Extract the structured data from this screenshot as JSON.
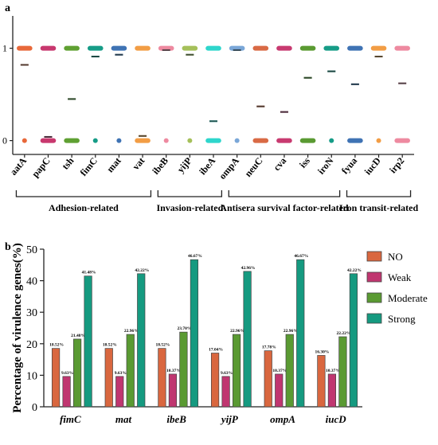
{
  "panels": {
    "a_label": "a",
    "b_label": "b"
  },
  "colors": {
    "no": "#d9673f",
    "weak": "#c03670",
    "moderate": "#5a9a32",
    "strong": "#159a80",
    "median": "#1f2a2a"
  },
  "chart_data": [
    {
      "type": "scatter",
      "panel": "a",
      "yticks": [
        "0",
        "1"
      ],
      "ylim": [
        -0.15,
        1.35
      ],
      "genes": [
        {
          "name": "aatA",
          "color": "#e8683a",
          "has_one": true,
          "has_zero": true,
          "mean": 0.82
        },
        {
          "name": "papC",
          "color": "#c8386e",
          "has_one": true,
          "has_zero": true,
          "mean": 0.04
        },
        {
          "name": "tsh",
          "color": "#5fa032",
          "has_one": true,
          "has_zero": true,
          "mean": 0.45
        },
        {
          "name": "fimC",
          "color": "#169c87",
          "has_one": true,
          "has_zero": true,
          "mean": 0.91
        },
        {
          "name": "mat",
          "color": "#3f73b4",
          "has_one": true,
          "has_zero": true,
          "mean": 0.93
        },
        {
          "name": "vat",
          "color": "#f29d45",
          "has_one": true,
          "has_zero": true,
          "mean": 0.05
        },
        {
          "name": "ibeB",
          "color": "#ee8aa0",
          "has_one": true,
          "has_zero": true,
          "mean": 0.98
        },
        {
          "name": "yijP",
          "color": "#a5c05a",
          "has_one": true,
          "has_zero": true,
          "mean": 0.93
        },
        {
          "name": "ibeA",
          "color": "#2ed6cc",
          "has_one": true,
          "has_zero": true,
          "mean": 0.21
        },
        {
          "name": "ompA",
          "color": "#7aa7d8",
          "has_one": true,
          "has_zero": true,
          "mean": 0.98
        },
        {
          "name": "neuC",
          "color": "#d96a45",
          "has_one": true,
          "has_zero": true,
          "mean": 0.37
        },
        {
          "name": "cva",
          "color": "#c83a70",
          "has_one": true,
          "has_zero": true,
          "mean": 0.31
        },
        {
          "name": "iss",
          "color": "#5a9a32",
          "has_one": true,
          "has_zero": true,
          "mean": 0.68
        },
        {
          "name": "iroN",
          "color": "#169c87",
          "has_one": true,
          "has_zero": true,
          "mean": 0.75
        },
        {
          "name": "fyua",
          "color": "#3f73b4",
          "has_one": true,
          "has_zero": true,
          "mean": 0.61
        },
        {
          "name": "iucD",
          "color": "#f29d45",
          "has_one": true,
          "has_zero": true,
          "mean": 0.91
        },
        {
          "name": "irp2",
          "color": "#ee8aa0",
          "has_one": true,
          "has_zero": true,
          "mean": 0.62
        }
      ],
      "groups": [
        {
          "label": "Adhesion-related",
          "first": 0,
          "last": 5
        },
        {
          "label": "Invasion-related",
          "first": 6,
          "last": 8
        },
        {
          "label": "Antisera survival factor-related",
          "first": 9,
          "last": 13
        },
        {
          "label": "Iron transit-related",
          "first": 14,
          "last": 16
        }
      ]
    },
    {
      "type": "bar",
      "panel": "b",
      "ylabel": "Percentage of virulence genes(%)",
      "ylim": [
        0,
        50
      ],
      "yticks": [
        0,
        10,
        20,
        30,
        40,
        50
      ],
      "categories": [
        "fimC",
        "mat",
        "ibeB",
        "yijP",
        "ompA",
        "iucD"
      ],
      "series": [
        {
          "name": "NO",
          "color": "#d9673f",
          "values": [
            18.52,
            18.52,
            18.52,
            17.04,
            17.78,
            16.3
          ],
          "labels": [
            "18.52%",
            "18.52%",
            "18.52%",
            "17.04%",
            "17.78%",
            "16.30%"
          ]
        },
        {
          "name": "Weak",
          "color": "#c03670",
          "values": [
            9.63,
            9.63,
            10.37,
            9.63,
            10.37,
            10.37
          ],
          "labels": [
            "9.63%",
            "9.63%",
            "10.37%",
            "9.63%",
            "10.37%",
            "10.37%"
          ]
        },
        {
          "name": "Moderate",
          "color": "#5a9a32",
          "values": [
            21.48,
            22.96,
            23.7,
            22.96,
            22.96,
            22.22
          ],
          "labels": [
            "21.48%",
            "22.96%",
            "23.70%",
            "22.96%",
            "22.96%",
            "22.22%"
          ]
        },
        {
          "name": "Strong",
          "color": "#159a80",
          "values": [
            41.48,
            42.22,
            46.67,
            42.96,
            46.67,
            42.22
          ],
          "labels": [
            "41.48%",
            "42.22%",
            "46.67%",
            "42.96%",
            "46.67%",
            "42.22%"
          ]
        }
      ],
      "legend_position": "right"
    }
  ]
}
